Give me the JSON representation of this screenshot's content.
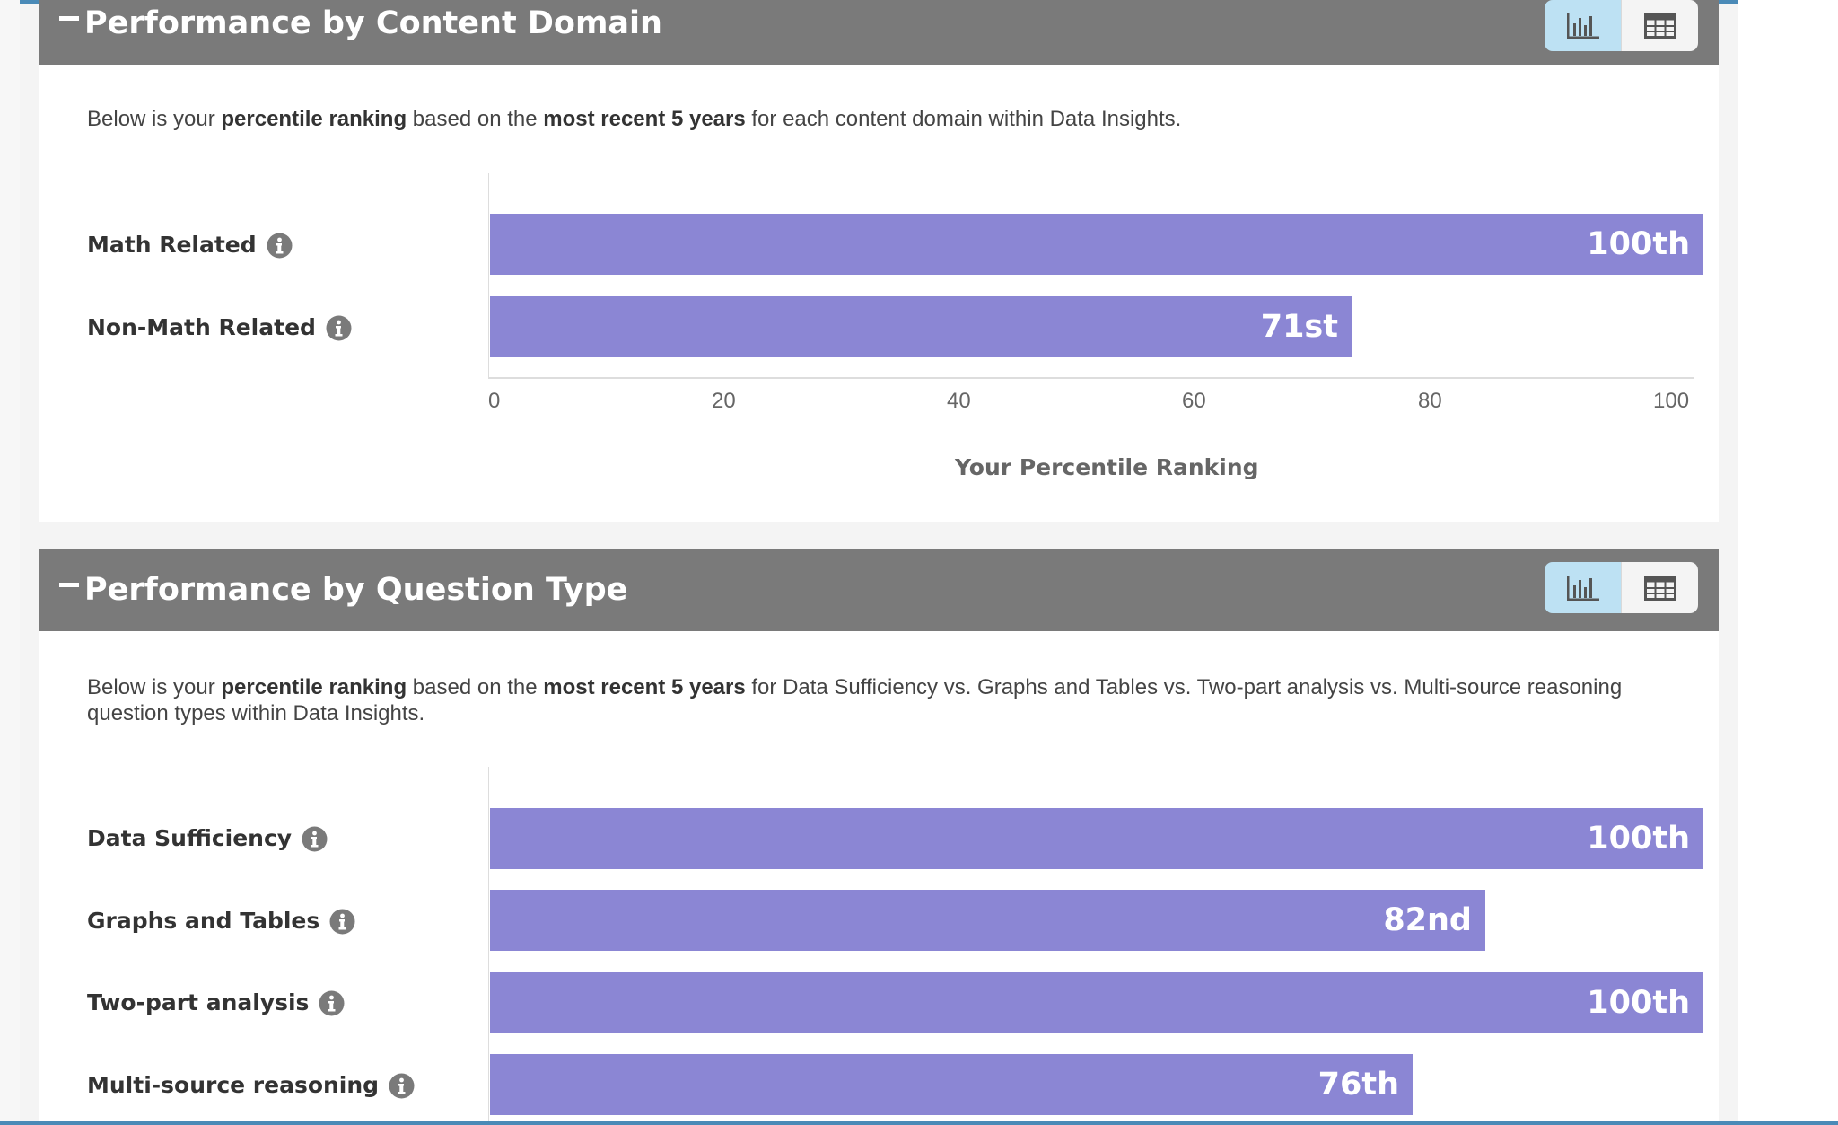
{
  "colors": {
    "header_bg": "#7a7a7a",
    "bar": "#8b86d4",
    "toggle_active": "#bde1f3",
    "accent_line": "#4a8ab7"
  },
  "icons": {
    "collapse": "minus-icon",
    "chart_view": "bar-chart-icon",
    "table_view": "table-grid-icon",
    "info": "info-icon"
  },
  "content_domain": {
    "title": "Performance by Content Domain",
    "description": {
      "part1": "Below is your ",
      "bold1": "percentile ranking",
      "part2": " based on the ",
      "bold2": "most recent 5 years",
      "part3": " for each content domain within Data Insights."
    },
    "chart_data": {
      "type": "bar",
      "orientation": "horizontal",
      "categories": [
        "Math Related",
        "Non-Math Related"
      ],
      "values": [
        100,
        71
      ],
      "value_labels": [
        "100th",
        "71st"
      ],
      "xlabel": "Your Percentile Ranking",
      "xlim": [
        0,
        100
      ],
      "x_ticks": [
        "0",
        "20",
        "40",
        "60",
        "80",
        "100"
      ],
      "grid": false
    }
  },
  "question_type": {
    "title": "Performance by Question Type",
    "description": {
      "part1": "Below is your ",
      "bold1": "percentile ranking",
      "part2": " based on the ",
      "bold2": "most recent 5 years",
      "part3": " for Data Sufficiency vs. Graphs and Tables vs. Two-part analysis vs. Multi-source reasoning question types within Data Insights."
    },
    "chart_data": {
      "type": "bar",
      "orientation": "horizontal",
      "categories": [
        "Data Sufficiency",
        "Graphs and Tables",
        "Two-part analysis",
        "Multi-source reasoning"
      ],
      "values": [
        100,
        82,
        100,
        76
      ],
      "value_labels": [
        "100th",
        "82nd",
        "100th",
        "76th"
      ],
      "xlim": [
        0,
        100
      ],
      "grid": false
    }
  }
}
